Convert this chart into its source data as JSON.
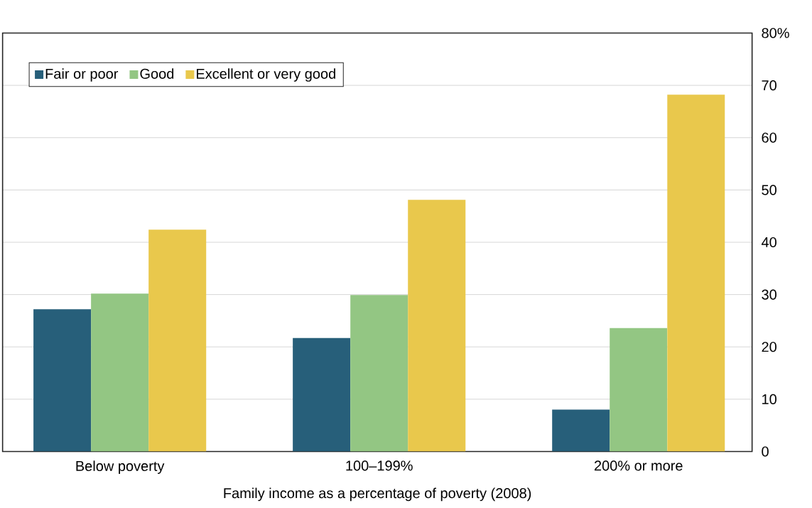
{
  "chart_data": {
    "type": "bar",
    "xlabel": "Family income as a percentage of poverty (2008)",
    "categories": [
      "Below poverty",
      "100–199%",
      "200% or more"
    ],
    "series": [
      {
        "name": "Fair or poor",
        "color": "#275f7a",
        "values": [
          27.2,
          21.7,
          8.0
        ]
      },
      {
        "name": "Good",
        "color": "#93c683",
        "values": [
          30.2,
          29.9,
          23.6
        ]
      },
      {
        "name": "Excellent or very good",
        "color": "#e9c84c",
        "values": [
          42.4,
          48.1,
          68.2
        ]
      }
    ],
    "ylim": [
      0,
      80
    ],
    "yticks": [
      0,
      10,
      20,
      30,
      40,
      50,
      60,
      70,
      {
        "value": 80,
        "label": "80%"
      }
    ],
    "grid": "y",
    "legend": "top left"
  }
}
